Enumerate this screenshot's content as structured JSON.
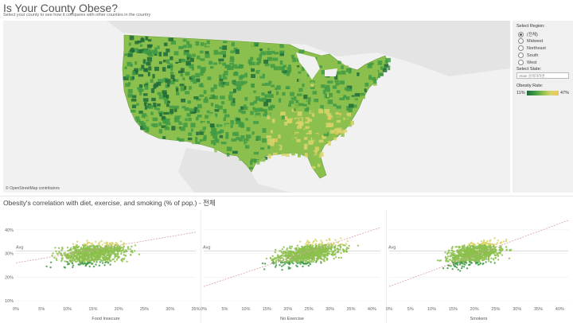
{
  "header": {
    "title": "Is Your County Obese?",
    "subtitle": "Select your county to see how it compares with other counties in the country"
  },
  "map": {
    "attribution": "© OpenStreetMap contributors"
  },
  "sidebar": {
    "region_label": "Select Region:",
    "regions": [
      {
        "label": "(전체)",
        "selected": true
      },
      {
        "label": "Midwest",
        "selected": false
      },
      {
        "label": "Northeast",
        "selected": false
      },
      {
        "label": "South",
        "selected": false
      },
      {
        "label": "West",
        "selected": false
      }
    ],
    "state_label": "Select State:",
    "state_placeholder": "State 검색하려면",
    "rate_label": "Obesity Rate:",
    "rate_min": "11%",
    "rate_max": "47%",
    "colors": [
      "#1d6b3a",
      "#3f9a44",
      "#8cc04e",
      "#d9d46a",
      "#ecc55e"
    ]
  },
  "correlation": {
    "title": "Obesity's correlation with diet, exercise, and smoking (% of pop.) - 전체",
    "avg_label": "Avg"
  },
  "chart_data": [
    {
      "type": "scatter",
      "xlabel": "Food Insecure",
      "x_ticks": [
        "0%",
        "5%",
        "10%",
        "15%",
        "20%",
        "25%",
        "30%",
        "35%"
      ],
      "xlim": [
        0,
        35
      ],
      "y_ticks": [
        "10%",
        "20%",
        "30%",
        "40%"
      ],
      "ylim": [
        10,
        45
      ],
      "avg_y": 31,
      "trend": [
        [
          0,
          26
        ],
        [
          35,
          39
        ]
      ],
      "cluster": {
        "x_center": 15,
        "x_spread": 5,
        "y_center": 30
      }
    },
    {
      "type": "scatter",
      "xlabel": "No Exercise",
      "x_ticks": [
        "0%",
        "5%",
        "10%",
        "15%",
        "20%",
        "25%",
        "30%",
        "35%",
        "40%"
      ],
      "xlim": [
        0,
        42
      ],
      "y_ticks": [
        "10%",
        "20%",
        "30%",
        "40%"
      ],
      "ylim": [
        10,
        45
      ],
      "avg_y": 31,
      "trend": [
        [
          0,
          16
        ],
        [
          42,
          41
        ]
      ],
      "cluster": {
        "x_center": 25,
        "x_spread": 6,
        "y_center": 30
      }
    },
    {
      "type": "scatter",
      "xlabel": "Smokers",
      "x_ticks": [
        "0%",
        "5%",
        "10%",
        "15%",
        "20%",
        "25%",
        "30%",
        "35%",
        "40%"
      ],
      "xlim": [
        0,
        42
      ],
      "y_ticks": [
        "10%",
        "20%",
        "30%",
        "40%"
      ],
      "ylim": [
        10,
        45
      ],
      "avg_y": 31,
      "trend": [
        [
          0,
          16
        ],
        [
          42,
          44
        ]
      ],
      "cluster": {
        "x_center": 20,
        "x_spread": 5,
        "y_center": 30
      }
    }
  ]
}
